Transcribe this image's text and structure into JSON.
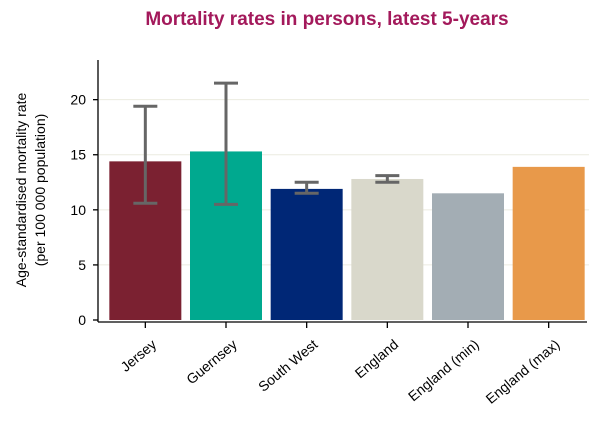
{
  "chart_data": {
    "type": "bar",
    "title": "Mortality rates in persons, latest 5-years",
    "y_label": [
      "Age-standardised mortality rate",
      "(per 100 000 population)"
    ],
    "categories": [
      "Jersey",
      "Guernsey",
      "South West",
      "England",
      "England (min)",
      "England (max)"
    ],
    "values": [
      14.4,
      15.3,
      11.9,
      12.8,
      11.5,
      13.9
    ],
    "ci_lower": [
      10.6,
      10.5,
      11.5,
      12.5,
      null,
      null
    ],
    "ci_upper": [
      19.4,
      21.5,
      12.5,
      13.1,
      null,
      null
    ],
    "colors": [
      "#7b2131",
      "#00a98f",
      "#002776",
      "#d9d8cb",
      "#a3adb4",
      "#e8994a"
    ],
    "ylim": [
      0,
      23.6
    ],
    "yticks": [
      0,
      5,
      10,
      15,
      20
    ],
    "grid": true
  }
}
